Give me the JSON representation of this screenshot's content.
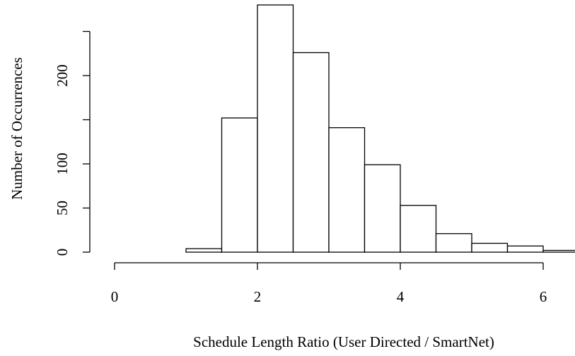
{
  "chart_data": {
    "type": "bar",
    "title": "",
    "xlabel": "Schedule Length Ratio (User Directed / SmartNet)",
    "ylabel": "Number of Occurrences",
    "xlim": [
      0,
      6.5
    ],
    "ylim": [
      0,
      280
    ],
    "grid": false,
    "x_ticks": [
      0,
      2,
      4,
      6
    ],
    "y_ticks": [
      0,
      50,
      100,
      150,
      200,
      250
    ],
    "y_tick_labels": [
      "0",
      "50",
      "100",
      "",
      "200",
      ""
    ],
    "bins": [
      {
        "x0": 1.0,
        "x1": 1.5,
        "count": 4
      },
      {
        "x0": 1.5,
        "x1": 2.0,
        "count": 152
      },
      {
        "x0": 2.0,
        "x1": 2.5,
        "count": 280
      },
      {
        "x0": 2.5,
        "x1": 3.0,
        "count": 226
      },
      {
        "x0": 3.0,
        "x1": 3.5,
        "count": 141
      },
      {
        "x0": 3.5,
        "x1": 4.0,
        "count": 99
      },
      {
        "x0": 4.0,
        "x1": 4.5,
        "count": 53
      },
      {
        "x0": 4.5,
        "x1": 5.0,
        "count": 21
      },
      {
        "x0": 5.0,
        "x1": 5.5,
        "count": 10
      },
      {
        "x0": 5.5,
        "x1": 6.0,
        "count": 7
      },
      {
        "x0": 6.0,
        "x1": 6.5,
        "count": 2
      }
    ]
  },
  "colors": {
    "bar_fill": "#ffffff",
    "bar_stroke": "#000000",
    "text": "#000000"
  }
}
